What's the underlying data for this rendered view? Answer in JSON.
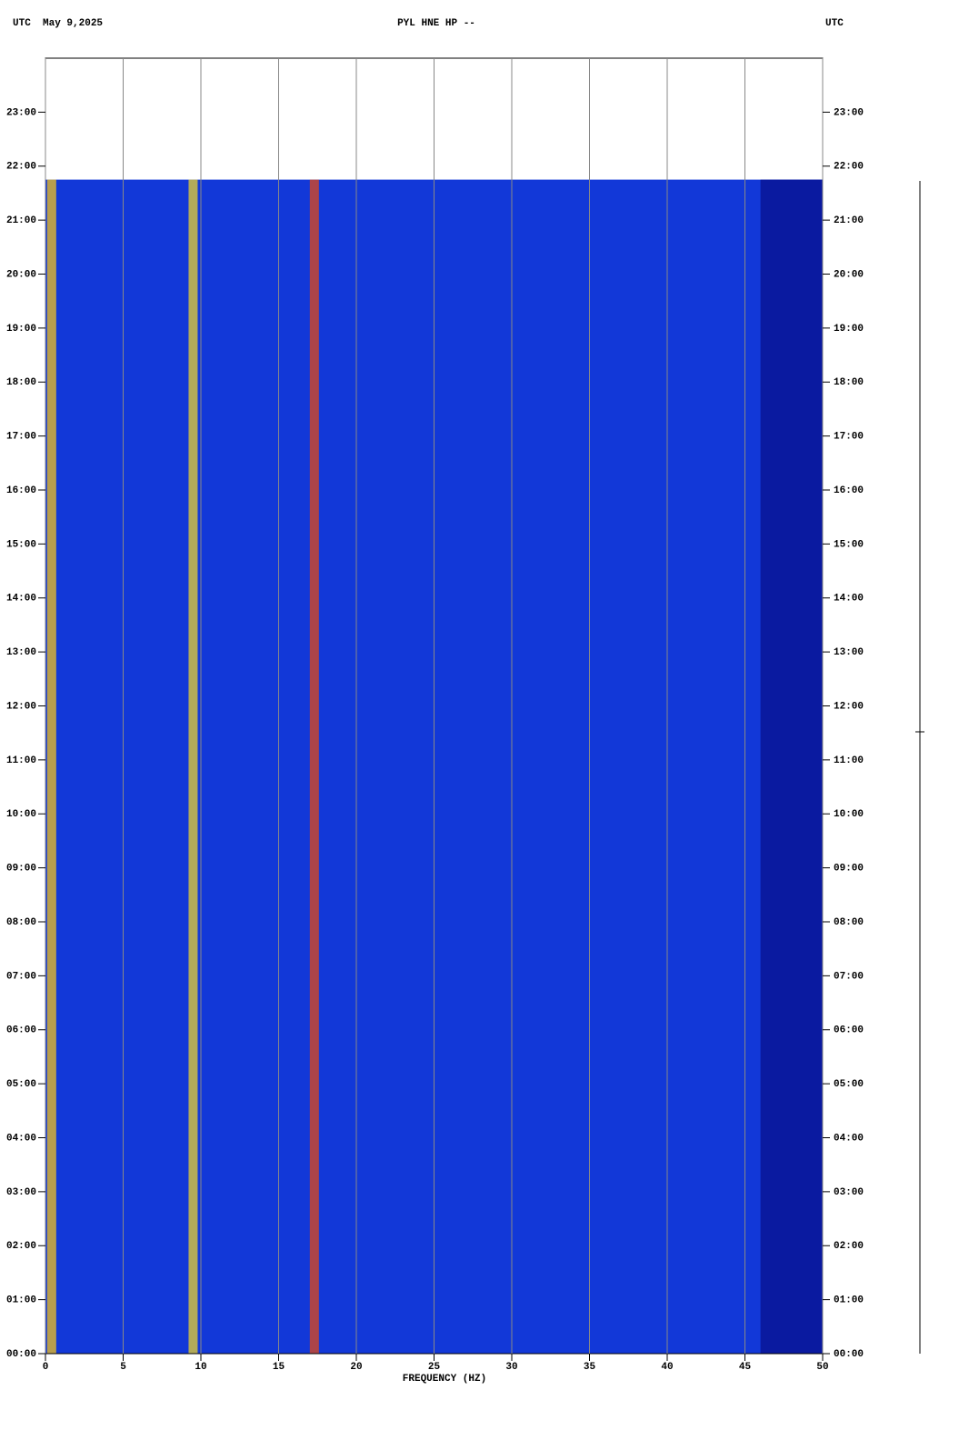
{
  "chart_data": {
    "type": "spectrogram",
    "title": "PYL HNE HP --",
    "date_label": "UTC  May 9,2025",
    "right_label": "UTC",
    "xlabel": "FREQUENCY (HZ)",
    "xlim": [
      0,
      50
    ],
    "xticks": [
      0,
      5,
      10,
      15,
      20,
      25,
      30,
      35,
      40,
      45,
      50
    ],
    "ylim": [
      0,
      24
    ],
    "yticks": [
      {
        "value": 0,
        "label": "00:00"
      },
      {
        "value": 1,
        "label": "01:00"
      },
      {
        "value": 2,
        "label": "02:00"
      },
      {
        "value": 3,
        "label": "03:00"
      },
      {
        "value": 4,
        "label": "04:00"
      },
      {
        "value": 5,
        "label": "05:00"
      },
      {
        "value": 6,
        "label": "06:00"
      },
      {
        "value": 7,
        "label": "07:00"
      },
      {
        "value": 8,
        "label": "08:00"
      },
      {
        "value": 9,
        "label": "09:00"
      },
      {
        "value": 10,
        "label": "10:00"
      },
      {
        "value": 11,
        "label": "11:00"
      },
      {
        "value": 12,
        "label": "12:00"
      },
      {
        "value": 13,
        "label": "13:00"
      },
      {
        "value": 14,
        "label": "14:00"
      },
      {
        "value": 15,
        "label": "15:00"
      },
      {
        "value": 16,
        "label": "16:00"
      },
      {
        "value": 17,
        "label": "17:00"
      },
      {
        "value": 18,
        "label": "18:00"
      },
      {
        "value": 19,
        "label": "19:00"
      },
      {
        "value": 20,
        "label": "20:00"
      },
      {
        "value": 21,
        "label": "21:00"
      },
      {
        "value": 22,
        "label": "22:00"
      },
      {
        "value": 23,
        "label": "23:00"
      }
    ],
    "data_range": [
      0,
      21.75
    ],
    "background_color": "#1238d8",
    "quiet_band": [
      46,
      50
    ],
    "quiet_color": "#0a1aa0",
    "bands": [
      {
        "x": 0.4,
        "color": "#f0c020"
      },
      {
        "x": 9.5,
        "color": "#e8d030"
      },
      {
        "x": 17.3,
        "color": "#e04818"
      }
    ],
    "grid": true
  }
}
